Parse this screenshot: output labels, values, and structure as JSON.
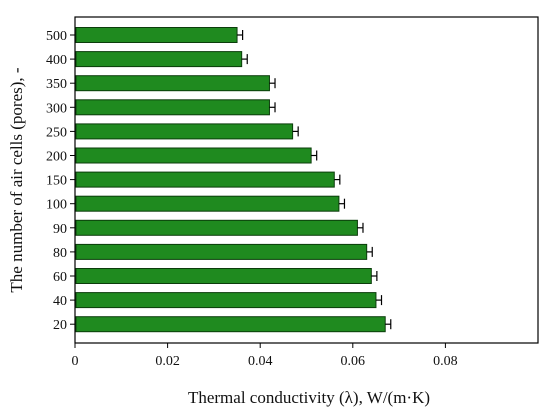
{
  "chart_data": {
    "type": "bar",
    "orientation": "horizontal",
    "title": "",
    "xlabel": "Thermal conductivity (λ), W/(m·K)",
    "ylabel": "The number of air cells (pores), -",
    "categories": [
      "500",
      "400",
      "350",
      "300",
      "250",
      "200",
      "150",
      "100",
      "90",
      "80",
      "60",
      "40",
      "20"
    ],
    "series": [
      {
        "values": [
          0.035,
          0.036,
          0.042,
          0.042,
          0.047,
          0.051,
          0.056,
          0.057,
          0.061,
          0.063,
          0.064,
          0.065,
          0.067
        ],
        "errors": [
          0.0012,
          0.0012,
          0.0012,
          0.0012,
          0.0012,
          0.0012,
          0.0012,
          0.0012,
          0.0012,
          0.0012,
          0.0012,
          0.0012,
          0.0012
        ]
      }
    ],
    "xlim": [
      0,
      0.1
    ],
    "xticks": [
      0,
      0.02,
      0.04,
      0.06,
      0.08
    ],
    "xtick_labels": [
      "0",
      "0.02",
      "0.04",
      "0.06",
      "0.08"
    ],
    "grid": false,
    "legend": false,
    "bar_color": "#1f8a1f",
    "bar_edge_color": "#0b3d0b"
  }
}
